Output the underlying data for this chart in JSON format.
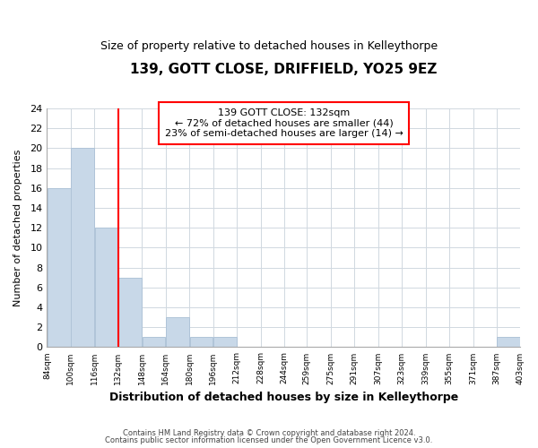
{
  "title": "139, GOTT CLOSE, DRIFFIELD, YO25 9EZ",
  "subtitle": "Size of property relative to detached houses in Kelleythorpe",
  "xlabel": "Distribution of detached houses by size in Kelleythorpe",
  "ylabel": "Number of detached properties",
  "bar_color": "#c8d8e8",
  "bar_edge_color": "#b0c4d8",
  "vline_x": 132,
  "vline_color": "red",
  "annotation_line1": "139 GOTT CLOSE: 132sqm",
  "annotation_line2": "← 72% of detached houses are smaller (44)",
  "annotation_line3": "23% of semi-detached houses are larger (14) →",
  "bins": [
    84,
    100,
    116,
    132,
    148,
    164,
    180,
    196,
    212,
    228,
    244,
    259,
    275,
    291,
    307,
    323,
    339,
    355,
    371,
    387,
    403
  ],
  "counts": [
    16,
    20,
    12,
    7,
    1,
    3,
    1,
    1,
    0,
    0,
    0,
    0,
    0,
    0,
    0,
    0,
    0,
    0,
    0,
    1
  ],
  "xlim_left": 84,
  "xlim_right": 403,
  "ylim_top": 24,
  "yticks": [
    0,
    2,
    4,
    6,
    8,
    10,
    12,
    14,
    16,
    18,
    20,
    22,
    24
  ],
  "tick_labels": [
    "84sqm",
    "100sqm",
    "116sqm",
    "132sqm",
    "148sqm",
    "164sqm",
    "180sqm",
    "196sqm",
    "212sqm",
    "228sqm",
    "244sqm",
    "259sqm",
    "275sqm",
    "291sqm",
    "307sqm",
    "323sqm",
    "339sqm",
    "355sqm",
    "371sqm",
    "387sqm",
    "403sqm"
  ],
  "footer1": "Contains HM Land Registry data © Crown copyright and database right 2024.",
  "footer2": "Contains public sector information licensed under the Open Government Licence v3.0."
}
